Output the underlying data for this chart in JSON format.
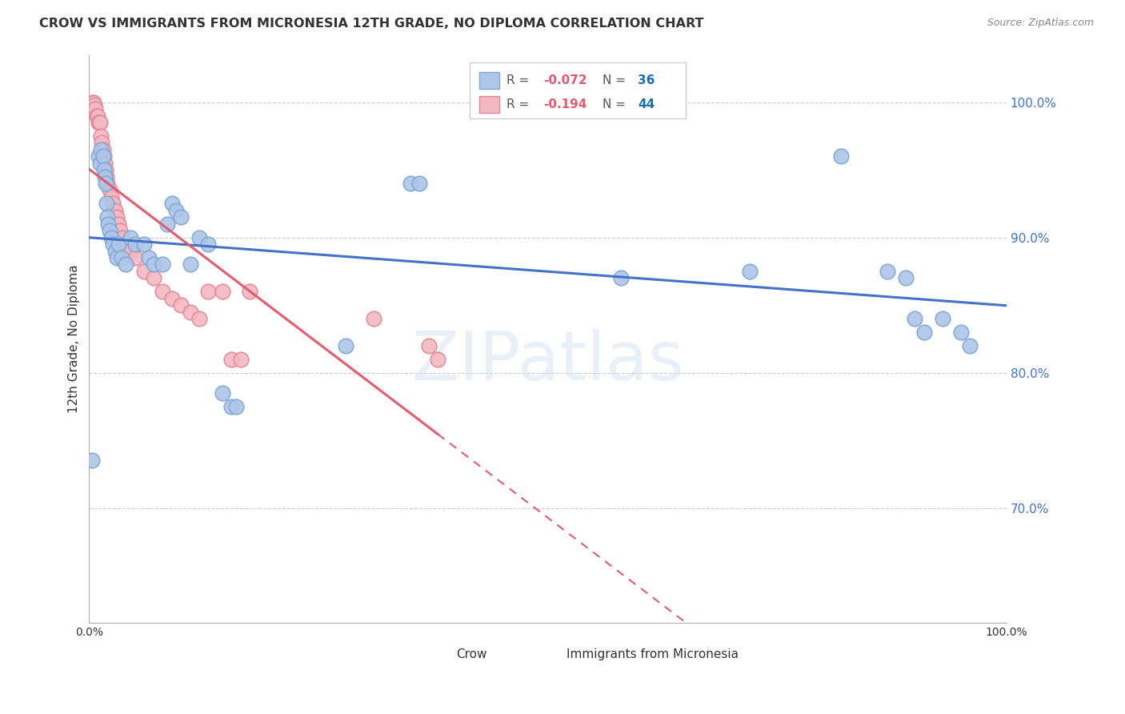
{
  "title": "CROW VS IMMIGRANTS FROM MICRONESIA 12TH GRADE, NO DIPLOMA CORRELATION CHART",
  "source": "Source: ZipAtlas.com",
  "ylabel": "12th Grade, No Diploma",
  "xlim": [
    0.0,
    1.0
  ],
  "ylim": [
    0.615,
    1.035
  ],
  "ytick_positions": [
    0.7,
    0.8,
    0.9,
    1.0
  ],
  "crow_line_color": "#4472c4",
  "micronesia_line_color": "#e05c6e",
  "crow_scatter_color": "#aec6e8",
  "micronesia_scatter_color": "#f4b8c1",
  "crow_scatter_edge": "#7fa8d4",
  "micronesia_scatter_edge": "#e08898",
  "background_color": "#ffffff",
  "grid_color": "#cccccc",
  "crow_scatter": [
    [
      0.003,
      0.735
    ],
    [
      0.01,
      0.96
    ],
    [
      0.012,
      0.955
    ],
    [
      0.013,
      0.965
    ],
    [
      0.015,
      0.96
    ],
    [
      0.016,
      0.95
    ],
    [
      0.017,
      0.945
    ],
    [
      0.018,
      0.94
    ],
    [
      0.019,
      0.925
    ],
    [
      0.02,
      0.915
    ],
    [
      0.021,
      0.91
    ],
    [
      0.022,
      0.905
    ],
    [
      0.024,
      0.9
    ],
    [
      0.026,
      0.895
    ],
    [
      0.028,
      0.89
    ],
    [
      0.03,
      0.885
    ],
    [
      0.032,
      0.895
    ],
    [
      0.035,
      0.885
    ],
    [
      0.04,
      0.88
    ],
    [
      0.045,
      0.9
    ],
    [
      0.05,
      0.895
    ],
    [
      0.06,
      0.895
    ],
    [
      0.065,
      0.885
    ],
    [
      0.07,
      0.88
    ],
    [
      0.08,
      0.88
    ],
    [
      0.085,
      0.91
    ],
    [
      0.09,
      0.925
    ],
    [
      0.095,
      0.92
    ],
    [
      0.1,
      0.915
    ],
    [
      0.11,
      0.88
    ],
    [
      0.12,
      0.9
    ],
    [
      0.13,
      0.895
    ],
    [
      0.145,
      0.785
    ],
    [
      0.155,
      0.775
    ],
    [
      0.16,
      0.775
    ],
    [
      0.28,
      0.82
    ],
    [
      0.35,
      0.94
    ],
    [
      0.36,
      0.94
    ],
    [
      0.58,
      0.87
    ],
    [
      0.72,
      0.875
    ],
    [
      0.82,
      0.96
    ],
    [
      0.87,
      0.875
    ],
    [
      0.89,
      0.87
    ],
    [
      0.9,
      0.84
    ],
    [
      0.91,
      0.83
    ],
    [
      0.93,
      0.84
    ],
    [
      0.95,
      0.83
    ],
    [
      0.96,
      0.82
    ]
  ],
  "micronesia_scatter": [
    [
      0.002,
      0.995
    ],
    [
      0.004,
      1.0
    ],
    [
      0.005,
      1.0
    ],
    [
      0.006,
      0.998
    ],
    [
      0.007,
      0.995
    ],
    [
      0.008,
      0.99
    ],
    [
      0.009,
      0.99
    ],
    [
      0.01,
      0.985
    ],
    [
      0.011,
      0.985
    ],
    [
      0.012,
      0.985
    ],
    [
      0.013,
      0.975
    ],
    [
      0.014,
      0.97
    ],
    [
      0.015,
      0.965
    ],
    [
      0.016,
      0.96
    ],
    [
      0.017,
      0.955
    ],
    [
      0.018,
      0.95
    ],
    [
      0.019,
      0.945
    ],
    [
      0.02,
      0.94
    ],
    [
      0.022,
      0.935
    ],
    [
      0.024,
      0.93
    ],
    [
      0.026,
      0.925
    ],
    [
      0.028,
      0.92
    ],
    [
      0.03,
      0.915
    ],
    [
      0.032,
      0.91
    ],
    [
      0.034,
      0.905
    ],
    [
      0.036,
      0.9
    ],
    [
      0.04,
      0.895
    ],
    [
      0.045,
      0.89
    ],
    [
      0.05,
      0.885
    ],
    [
      0.06,
      0.875
    ],
    [
      0.07,
      0.87
    ],
    [
      0.08,
      0.86
    ],
    [
      0.09,
      0.855
    ],
    [
      0.1,
      0.85
    ],
    [
      0.11,
      0.845
    ],
    [
      0.12,
      0.84
    ],
    [
      0.13,
      0.86
    ],
    [
      0.145,
      0.86
    ],
    [
      0.155,
      0.81
    ],
    [
      0.165,
      0.81
    ],
    [
      0.175,
      0.86
    ],
    [
      0.31,
      0.84
    ],
    [
      0.37,
      0.82
    ],
    [
      0.38,
      0.81
    ]
  ]
}
